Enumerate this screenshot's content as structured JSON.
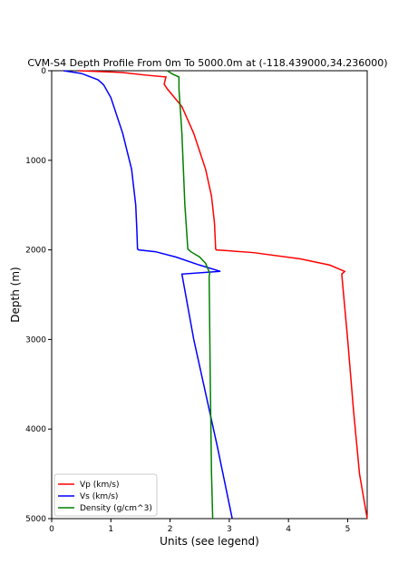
{
  "chart_data": {
    "type": "line",
    "title": "CVM-S4 Depth Profile From 0m To 5000.0m at (-118.439000,34.236000)",
    "xlabel": "Units (see legend)",
    "ylabel": "Depth (m)",
    "xlim": [
      0,
      5.33
    ],
    "ylim": [
      5000,
      0
    ],
    "y_inverted": true,
    "xticks": [
      0,
      1,
      2,
      3,
      4,
      5
    ],
    "yticks": [
      0,
      1000,
      2000,
      3000,
      4000,
      5000
    ],
    "grid": false,
    "legend_position": "bottom-left",
    "series": [
      {
        "name": "Vp (km/s)",
        "color": "#ff0000",
        "points": [
          [
            0.45,
            0
          ],
          [
            1.2,
            20
          ],
          [
            1.6,
            50
          ],
          [
            1.93,
            70
          ],
          [
            1.9,
            150
          ],
          [
            1.95,
            200
          ],
          [
            2.2,
            400
          ],
          [
            2.4,
            700
          ],
          [
            2.6,
            1100
          ],
          [
            2.7,
            1400
          ],
          [
            2.75,
            1700
          ],
          [
            2.77,
            1990
          ],
          [
            2.78,
            2000
          ],
          [
            3.4,
            2030
          ],
          [
            4.2,
            2100
          ],
          [
            4.7,
            2170
          ],
          [
            4.95,
            2240
          ],
          [
            4.9,
            2270
          ],
          [
            5.0,
            3000
          ],
          [
            5.1,
            3800
          ],
          [
            5.2,
            4500
          ],
          [
            5.33,
            5000
          ]
        ]
      },
      {
        "name": "Vs (km/s)",
        "color": "#0000ff",
        "points": [
          [
            0.2,
            0
          ],
          [
            0.5,
            30
          ],
          [
            0.78,
            100
          ],
          [
            0.85,
            140
          ],
          [
            0.88,
            160
          ],
          [
            1.0,
            300
          ],
          [
            1.2,
            700
          ],
          [
            1.35,
            1100
          ],
          [
            1.42,
            1500
          ],
          [
            1.44,
            1800
          ],
          [
            1.45,
            1990
          ],
          [
            1.47,
            2000
          ],
          [
            1.75,
            2020
          ],
          [
            2.1,
            2080
          ],
          [
            2.5,
            2170
          ],
          [
            2.85,
            2240
          ],
          [
            2.2,
            2270
          ],
          [
            2.4,
            3000
          ],
          [
            2.6,
            3600
          ],
          [
            2.8,
            4200
          ],
          [
            3.05,
            5000
          ]
        ]
      },
      {
        "name": "Density (g/cm^3)",
        "color": "#008000",
        "points": [
          [
            1.95,
            0
          ],
          [
            2.05,
            40
          ],
          [
            2.15,
            70
          ],
          [
            2.15,
            200
          ],
          [
            2.2,
            700
          ],
          [
            2.25,
            1500
          ],
          [
            2.3,
            1990
          ],
          [
            2.35,
            2020
          ],
          [
            2.5,
            2080
          ],
          [
            2.6,
            2150
          ],
          [
            2.67,
            2260
          ],
          [
            2.66,
            2300
          ],
          [
            2.68,
            3500
          ],
          [
            2.7,
            4500
          ],
          [
            2.72,
            5000
          ]
        ]
      }
    ]
  }
}
